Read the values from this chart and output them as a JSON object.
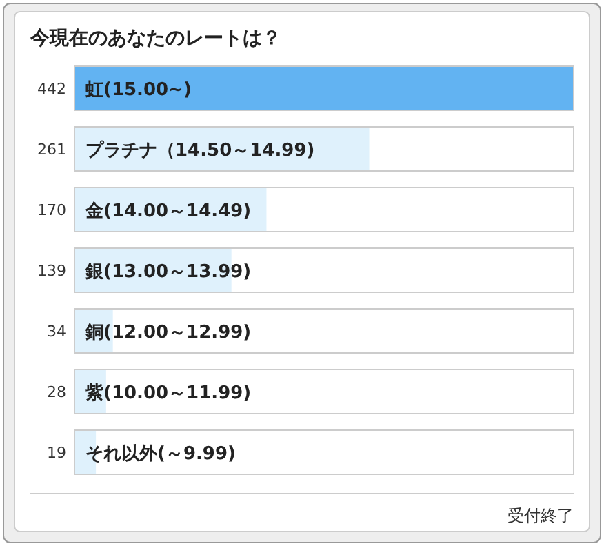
{
  "chart_data": {
    "type": "bar",
    "orientation": "horizontal",
    "title": "今現在のあなたのレートは？",
    "categories": [
      "虹(15.00~)",
      "プラチナ（14.50～14.99)",
      "金(14.00～14.49)",
      "銀(13.00～13.99)",
      "銅(12.00～12.99)",
      "紫(10.00～11.99)",
      "それ以外(～9.99)"
    ],
    "values": [
      442,
      261,
      170,
      139,
      34,
      28,
      19
    ],
    "colors": [
      "#62b3f2",
      "#dff1fc",
      "#dff1fc",
      "#dff1fc",
      "#dff1fc",
      "#dff1fc",
      "#dff1fc"
    ],
    "xlim": [
      0,
      442
    ],
    "data_labels": true,
    "annotations": [
      "受付終了"
    ]
  }
}
